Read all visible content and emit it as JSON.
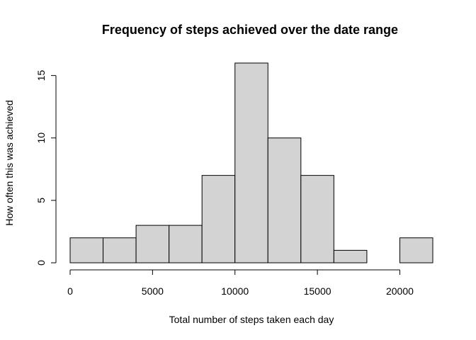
{
  "chart_data": {
    "type": "bar",
    "title": "Frequency of steps achieved over the date range",
    "xlabel": "Total number of steps taken each day",
    "ylabel": "How often this was achieved",
    "bins": [
      {
        "from": 0,
        "to": 2000,
        "count": 2
      },
      {
        "from": 2000,
        "to": 4000,
        "count": 2
      },
      {
        "from": 4000,
        "to": 6000,
        "count": 3
      },
      {
        "from": 6000,
        "to": 8000,
        "count": 3
      },
      {
        "from": 8000,
        "to": 10000,
        "count": 7
      },
      {
        "from": 10000,
        "to": 12000,
        "count": 16
      },
      {
        "from": 12000,
        "to": 14000,
        "count": 10
      },
      {
        "from": 14000,
        "to": 16000,
        "count": 7
      },
      {
        "from": 16000,
        "to": 18000,
        "count": 1
      },
      {
        "from": 18000,
        "to": 20000,
        "count": 0
      },
      {
        "from": 20000,
        "to": 22000,
        "count": 2
      }
    ],
    "x_ticks": [
      "0",
      "5000",
      "10000",
      "15000",
      "20000"
    ],
    "y_ticks": [
      "0",
      "5",
      "10",
      "15"
    ],
    "xlim": [
      0,
      22000
    ],
    "ylim": [
      0,
      16
    ],
    "grid": false,
    "legend": "none",
    "bar_fill": "#d3d3d3",
    "bar_stroke": "#000000"
  }
}
